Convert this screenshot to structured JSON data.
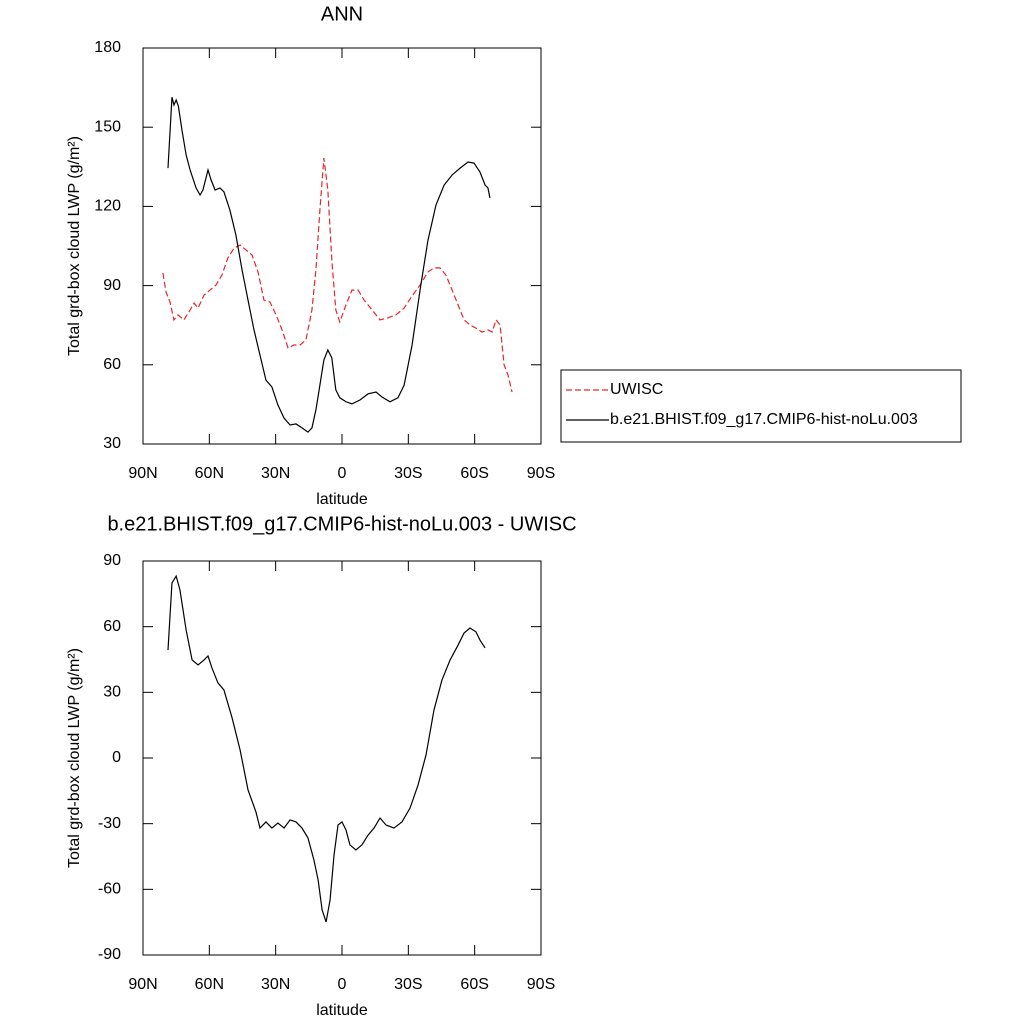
{
  "chart_data": [
    {
      "type": "line",
      "title": "ANN",
      "xlabel": "latitude",
      "ylabel": "Total grd-box cloud LWP (g/m²)",
      "xlim": [
        90,
        -90
      ],
      "xticks": [
        {
          "value": 90,
          "label": "90N"
        },
        {
          "value": 60,
          "label": "60N"
        },
        {
          "value": 30,
          "label": "30N"
        },
        0,
        {
          "value": -30,
          "label": "30S"
        },
        {
          "value": -60,
          "label": "60S"
        },
        {
          "value": -90,
          "label": "90S"
        }
      ],
      "ylim": [
        30,
        180
      ],
      "yticks": [
        30,
        60,
        90,
        120,
        150,
        180
      ],
      "legend": "outside-right",
      "series": [
        {
          "name": "UWISC",
          "color": "#e8262a",
          "linestyle": "dashed",
          "x": [
            81,
            79.6,
            77.8,
            76,
            74.2,
            71.5,
            68.7,
            66.9,
            65.1,
            62.4,
            59.7,
            57,
            54.3,
            51.6,
            48.8,
            46.1,
            43.4,
            40.7,
            38,
            35.3,
            32.6,
            29.8,
            27.1,
            24.4,
            21.7,
            19,
            16.3,
            13.6,
            11.8,
            10,
            8.2,
            6.4,
            4.6,
            2.8,
            1,
            -1.8,
            -4.5,
            -7.3,
            -10,
            -13.6,
            -17.2,
            -20.8,
            -24.4,
            -28.1,
            -31.7,
            -35.3,
            -38.9,
            -41.6,
            -44.3,
            -47,
            -49.8,
            -52.5,
            -55.2,
            -57.9,
            -60.6,
            -63.3,
            -66,
            -67.9,
            -69.7,
            -71.5,
            -73.3,
            -75.1,
            -76.9
          ],
          "values": [
            94.8,
            87.6,
            83.8,
            77,
            78.9,
            77,
            80.8,
            83.4,
            81.5,
            86.4,
            88.3,
            90.2,
            94,
            100.5,
            104.2,
            105.4,
            103.5,
            101.6,
            95.2,
            84.5,
            83.8,
            78.9,
            73.2,
            66.4,
            67.5,
            67.5,
            69.4,
            80.8,
            95.9,
            118.6,
            138.3,
            126.2,
            99.7,
            80.8,
            76.2,
            82.7,
            88.3,
            88.3,
            84.5,
            80.8,
            77,
            77.8,
            78.9,
            81.5,
            86.1,
            90.2,
            95.2,
            96.7,
            96.7,
            94,
            88.3,
            82.7,
            77,
            75.1,
            73.9,
            72.4,
            73.2,
            72.4,
            77,
            75.1,
            60,
            56.1,
            49.7
          ]
        },
        {
          "name": "b.e21.BHIST.f09_g17.CMIP6-hist-noLu.003",
          "color": "#000000",
          "linestyle": "solid",
          "x": [
            78.7,
            76.9,
            76,
            75,
            74,
            72.4,
            70.5,
            68.7,
            66,
            64.2,
            62.9,
            60.6,
            59.2,
            57.4,
            55.2,
            53.4,
            50.7,
            48,
            45.2,
            42.5,
            39.8,
            37.1,
            34.4,
            31.7,
            29,
            26.2,
            23.5,
            20.8,
            18.1,
            15.4,
            13.6,
            11.8,
            10,
            8.2,
            6.4,
            4.6,
            2.8,
            1,
            -1.8,
            -4.5,
            -8.2,
            -11.8,
            -15.4,
            -18.1,
            -21.7,
            -25.3,
            -28.1,
            -31.7,
            -35.3,
            -38.9,
            -42.5,
            -46.2,
            -49.8,
            -53.4,
            -57,
            -59.7,
            -62.4,
            -64.7,
            -66,
            -66.9
          ],
          "values": [
            134.5,
            161.4,
            158.4,
            160.3,
            158,
            149,
            139.5,
            133.8,
            127,
            124.3,
            126.2,
            133.8,
            130,
            126.2,
            127,
            125.5,
            118.6,
            109.2,
            95.9,
            84.5,
            73.2,
            63.7,
            54.2,
            51.6,
            44.8,
            39.8,
            37.2,
            37.6,
            36.1,
            34.5,
            36.1,
            42.9,
            52.3,
            61.8,
            65.6,
            62.6,
            50.5,
            47.5,
            46,
            45.2,
            46.7,
            49,
            49.7,
            47.8,
            46,
            47.5,
            52.3,
            67.5,
            88.3,
            107.3,
            120.5,
            128.1,
            131.9,
            134.5,
            136.8,
            136.4,
            133,
            128.1,
            127,
            123.2
          ]
        }
      ]
    },
    {
      "type": "line",
      "title": "b.e21.BHIST.f09_g17.CMIP6-hist-noLu.003 - UWISC",
      "xlabel": "latitude",
      "ylabel": "Total grd-box cloud LWP (g/m²)",
      "xlim": [
        90,
        -90
      ],
      "xticks": [
        {
          "value": 90,
          "label": "90N"
        },
        {
          "value": 60,
          "label": "60N"
        },
        {
          "value": 30,
          "label": "30N"
        },
        0,
        {
          "value": -30,
          "label": "30S"
        },
        {
          "value": -60,
          "label": "60S"
        },
        {
          "value": -90,
          "label": "90S"
        }
      ],
      "ylim": [
        -90,
        90
      ],
      "yticks": [
        -90,
        -60,
        -30,
        0,
        30,
        60,
        90
      ],
      "series": [
        {
          "color": "#000000",
          "linestyle": "solid",
          "x": [
            78.7,
            76.9,
            75,
            73.3,
            70.5,
            67.8,
            65.1,
            62.4,
            60.6,
            58.8,
            56.1,
            53.4,
            49.7,
            46.1,
            42.5,
            38.9,
            37.1,
            34.4,
            31.7,
            29,
            26.2,
            23.5,
            20.8,
            18.1,
            15.4,
            12.7,
            10.8,
            9,
            7.2,
            5.4,
            3.6,
            1.8,
            0,
            -1.8,
            -3.6,
            -6.3,
            -9,
            -11.8,
            -14.5,
            -17.2,
            -19.9,
            -23.5,
            -27.1,
            -30.8,
            -34.4,
            -38,
            -41.6,
            -45.2,
            -48.9,
            -52.5,
            -55.2,
            -57.9,
            -60.6,
            -62.4,
            -64.7
          ],
          "values": [
            49.3,
            80,
            83.1,
            76.8,
            58.5,
            44.8,
            42.5,
            44.8,
            46.6,
            41.1,
            34.3,
            31.1,
            18.3,
            3.7,
            -14.6,
            -24.7,
            -32,
            -29.2,
            -32,
            -29.7,
            -32,
            -28.3,
            -29.2,
            -32,
            -36.5,
            -46.6,
            -55.7,
            -69.4,
            -74.9,
            -64.9,
            -44.3,
            -30.6,
            -29.2,
            -32.9,
            -39.7,
            -42,
            -39.7,
            -35.2,
            -32,
            -27.4,
            -30.6,
            -32,
            -29.2,
            -22.8,
            -12.3,
            1.4,
            21.9,
            35.6,
            44.8,
            51.6,
            57.1,
            59.4,
            57.6,
            53.9,
            50.3
          ]
        }
      ]
    }
  ]
}
